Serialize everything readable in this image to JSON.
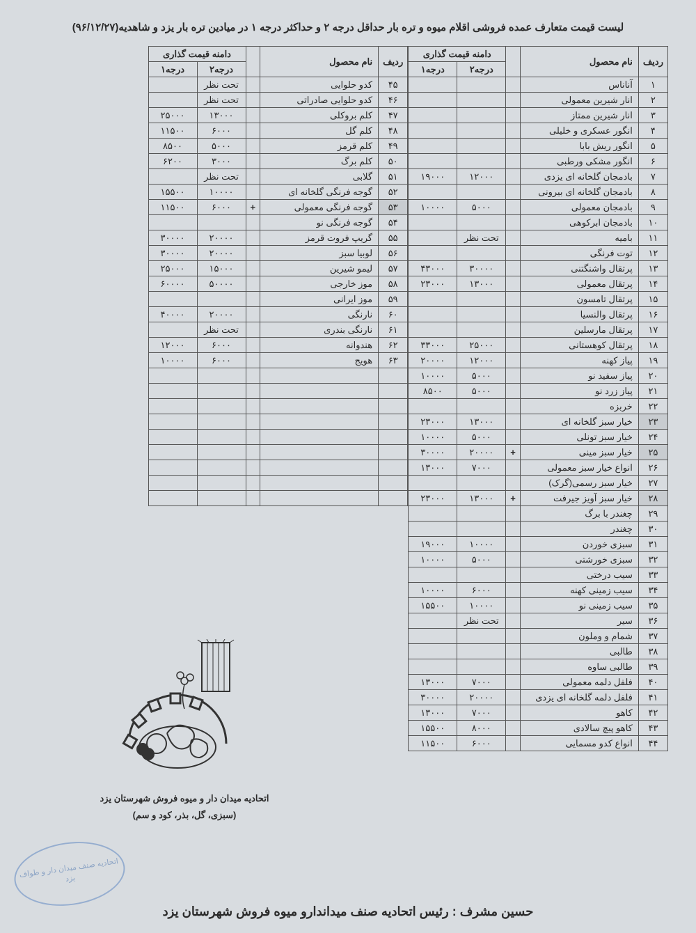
{
  "title": "لیست قیمت متعارف عمده فروشی اقلام میوه و تره بار حداقل درجه ۲ و حداکثر درجه ۱ در میادین تره بار یزد و شاهدیه(۹۶/۱۲/۲۷)",
  "headers": {
    "idx": "ردیف",
    "name": "نام محصول",
    "price_range": "دامنه قیمت گذاری",
    "grade2": "درجه۲",
    "grade1": "درجه۱"
  },
  "right_rows": [
    {
      "idx": "۱",
      "name": "آناناس",
      "mark": "",
      "g2": "",
      "g1": ""
    },
    {
      "idx": "۲",
      "name": "انار شیرین معمولی",
      "mark": "",
      "g2": "",
      "g1": ""
    },
    {
      "idx": "۳",
      "name": "انار شیرین ممتاز",
      "mark": "",
      "g2": "",
      "g1": ""
    },
    {
      "idx": "۴",
      "name": "انگور عسکری و خلیلی",
      "mark": "",
      "g2": "",
      "g1": ""
    },
    {
      "idx": "۵",
      "name": "انگور ریش بابا",
      "mark": "",
      "g2": "",
      "g1": ""
    },
    {
      "idx": "۶",
      "name": "انگور مشکی ورطبی",
      "mark": "",
      "g2": "",
      "g1": ""
    },
    {
      "idx": "۷",
      "name": "بادمجان گلخانه ای یزدی",
      "mark": "",
      "g2": "۱۲۰۰۰",
      "g1": "۱۹۰۰۰"
    },
    {
      "idx": "۸",
      "name": "بادمجان گلخانه ای بیرونی",
      "mark": "",
      "g2": "",
      "g1": ""
    },
    {
      "idx": "۹",
      "name": "بادمجان معمولی",
      "mark": "",
      "g2": "۵۰۰۰",
      "g1": "۱۰۰۰۰"
    },
    {
      "idx": "۱۰",
      "name": "بادمجان ابرکوهی",
      "mark": "",
      "g2": "",
      "g1": ""
    },
    {
      "idx": "۱۱",
      "name": "بامیه",
      "mark": "",
      "g2": "تحت نظر",
      "g1": ""
    },
    {
      "idx": "۱۲",
      "name": "توت فرنگی",
      "mark": "",
      "g2": "",
      "g1": ""
    },
    {
      "idx": "۱۳",
      "name": "پرتقال واشنگتنی",
      "mark": "",
      "g2": "۳۰۰۰۰",
      "g1": "۴۳۰۰۰"
    },
    {
      "idx": "۱۴",
      "name": "پرتقال معمولی",
      "mark": "",
      "g2": "۱۳۰۰۰",
      "g1": "۲۳۰۰۰"
    },
    {
      "idx": "۱۵",
      "name": "پرتقال تامسون",
      "mark": "",
      "g2": "",
      "g1": ""
    },
    {
      "idx": "۱۶",
      "name": "پرتقال والنسیا",
      "mark": "",
      "g2": "",
      "g1": ""
    },
    {
      "idx": "۱۷",
      "name": "پرتقال مارسلین",
      "mark": "",
      "g2": "",
      "g1": ""
    },
    {
      "idx": "۱۸",
      "name": "پرتقال کوهستانی",
      "mark": "",
      "g2": "۲۵۰۰۰",
      "g1": "۳۳۰۰۰"
    },
    {
      "idx": "۱۹",
      "name": "پیاز کهنه",
      "mark": "",
      "g2": "۱۲۰۰۰",
      "g1": "۲۰۰۰۰"
    },
    {
      "idx": "۲۰",
      "name": "پیاز سفید نو",
      "mark": "",
      "g2": "۵۰۰۰",
      "g1": "۱۰۰۰۰"
    },
    {
      "idx": "۲۱",
      "name": "پیاز زرد نو",
      "mark": "",
      "g2": "۵۰۰۰",
      "g1": "۸۵۰۰"
    },
    {
      "idx": "۲۲",
      "name": "خربزه",
      "mark": "",
      "g2": "",
      "g1": ""
    },
    {
      "idx": "۲۳",
      "name": "خیار سبز گلخانه ای",
      "mark": "",
      "g2": "۱۳۰۰۰",
      "g1": "۲۳۰۰۰",
      "shade": true
    },
    {
      "idx": "۲۴",
      "name": "خیار سبز تونلی",
      "mark": "",
      "g2": "۵۰۰۰",
      "g1": "۱۰۰۰۰"
    },
    {
      "idx": "۲۵",
      "name": "خیار سبز مینی",
      "mark": "+",
      "g2": "۲۰۰۰۰",
      "g1": "۳۰۰۰۰",
      "shade": true
    },
    {
      "idx": "۲۶",
      "name": "انواع خیار سبز معمولی",
      "mark": "",
      "g2": "۷۰۰۰",
      "g1": "۱۳۰۰۰"
    },
    {
      "idx": "۲۷",
      "name": "خیار سبز رسمی(گرک)",
      "mark": "",
      "g2": "",
      "g1": ""
    },
    {
      "idx": "۲۸",
      "name": "خیار سبز آویز جیرفت",
      "mark": "+",
      "g2": "۱۳۰۰۰",
      "g1": "۲۳۰۰۰",
      "shade": true
    },
    {
      "idx": "۲۹",
      "name": "چغندر با برگ",
      "mark": "",
      "g2": "",
      "g1": ""
    },
    {
      "idx": "۳۰",
      "name": "چغندر",
      "mark": "",
      "g2": "",
      "g1": ""
    },
    {
      "idx": "۳۱",
      "name": "سبزی خوردن",
      "mark": "",
      "g2": "۱۰۰۰۰",
      "g1": "۱۹۰۰۰"
    },
    {
      "idx": "۳۲",
      "name": "سبزی خورشتی",
      "mark": "",
      "g2": "۵۰۰۰",
      "g1": "۱۰۰۰۰"
    },
    {
      "idx": "۳۳",
      "name": "سیب درختی",
      "mark": "",
      "g2": "",
      "g1": ""
    },
    {
      "idx": "۳۴",
      "name": "سیب زمینی کهنه",
      "mark": "",
      "g2": "۶۰۰۰",
      "g1": "۱۰۰۰۰"
    },
    {
      "idx": "۳۵",
      "name": "سیب زمینی نو",
      "mark": "",
      "g2": "۱۰۰۰۰",
      "g1": "۱۵۵۰۰"
    },
    {
      "idx": "۳۶",
      "name": "سیر",
      "mark": "",
      "g2": "تحت نظر",
      "g1": ""
    },
    {
      "idx": "۳۷",
      "name": "شمام و وملون",
      "mark": "",
      "g2": "",
      "g1": ""
    },
    {
      "idx": "۳۸",
      "name": "طالبی",
      "mark": "",
      "g2": "",
      "g1": ""
    },
    {
      "idx": "۳۹",
      "name": "طالبی ساوه",
      "mark": "",
      "g2": "",
      "g1": ""
    },
    {
      "idx": "۴۰",
      "name": "فلفل دلمه معمولی",
      "mark": "",
      "g2": "۷۰۰۰",
      "g1": "۱۳۰۰۰"
    },
    {
      "idx": "۴۱",
      "name": "فلفل دلمه گلخانه ای یزدی",
      "mark": "",
      "g2": "۲۰۰۰۰",
      "g1": "۳۰۰۰۰"
    },
    {
      "idx": "۴۲",
      "name": "کاهو",
      "mark": "",
      "g2": "۷۰۰۰",
      "g1": "۱۳۰۰۰"
    },
    {
      "idx": "۴۳",
      "name": "کاهو پیچ سالادی",
      "mark": "",
      "g2": "۸۰۰۰",
      "g1": "۱۵۵۰۰"
    },
    {
      "idx": "۴۴",
      "name": "انواع کدو مسمایی",
      "mark": "",
      "g2": "۶۰۰۰",
      "g1": "۱۱۵۰۰"
    }
  ],
  "left_rows": [
    {
      "idx": "۴۵",
      "name": "کدو حلوایی",
      "mark": "",
      "g2": "تحت نظر",
      "g1": ""
    },
    {
      "idx": "۴۶",
      "name": "کدو حلوایی صادراتی",
      "mark": "",
      "g2": "تحت نظر",
      "g1": ""
    },
    {
      "idx": "۴۷",
      "name": "کلم بروکلی",
      "mark": "",
      "g2": "۱۳۰۰۰",
      "g1": "۲۵۰۰۰"
    },
    {
      "idx": "۴۸",
      "name": "کلم گل",
      "mark": "",
      "g2": "۶۰۰۰",
      "g1": "۱۱۵۰۰"
    },
    {
      "idx": "۴۹",
      "name": "کلم قرمز",
      "mark": "",
      "g2": "۵۰۰۰",
      "g1": "۸۵۰۰"
    },
    {
      "idx": "۵۰",
      "name": "کلم برگ",
      "mark": "",
      "g2": "۳۰۰۰",
      "g1": "۶۲۰۰"
    },
    {
      "idx": "۵۱",
      "name": "گلابی",
      "mark": "",
      "g2": "تحت نظر",
      "g1": ""
    },
    {
      "idx": "۵۲",
      "name": "گوجه فرنگی گلخانه ای",
      "mark": "",
      "g2": "۱۰۰۰۰",
      "g1": "۱۵۵۰۰"
    },
    {
      "idx": "۵۳",
      "name": "گوجه فرنگی معمولی",
      "mark": "+",
      "g2": "۶۰۰۰",
      "g1": "۱۱۵۰۰",
      "shade": true
    },
    {
      "idx": "۵۴",
      "name": "گوجه فرنگی نو",
      "mark": "",
      "g2": "",
      "g1": ""
    },
    {
      "idx": "۵۵",
      "name": "گریپ فروت قرمز",
      "mark": "",
      "g2": "۲۰۰۰۰",
      "g1": "۳۰۰۰۰"
    },
    {
      "idx": "۵۶",
      "name": "لوبیا سبز",
      "mark": "",
      "g2": "۲۰۰۰۰",
      "g1": "۳۰۰۰۰"
    },
    {
      "idx": "۵۷",
      "name": "لیمو شیرین",
      "mark": "",
      "g2": "۱۵۰۰۰",
      "g1": "۲۵۰۰۰"
    },
    {
      "idx": "۵۸",
      "name": "موز خارجی",
      "mark": "",
      "g2": "۵۰۰۰۰",
      "g1": "۶۰۰۰۰"
    },
    {
      "idx": "۵۹",
      "name": "موز ایرانی",
      "mark": "",
      "g2": "",
      "g1": ""
    },
    {
      "idx": "۶۰",
      "name": "نارنگی",
      "mark": "",
      "g2": "۲۰۰۰۰",
      "g1": "۴۰۰۰۰"
    },
    {
      "idx": "۶۱",
      "name": "نارنگی بندری",
      "mark": "",
      "g2": "تحت نظر",
      "g1": ""
    },
    {
      "idx": "۶۲",
      "name": "هندوانه",
      "mark": "",
      "g2": "۶۰۰۰",
      "g1": "۱۲۰۰۰"
    },
    {
      "idx": "۶۳",
      "name": "هویج",
      "mark": "",
      "g2": "۶۰۰۰",
      "g1": "۱۰۰۰۰"
    },
    {
      "idx": "",
      "name": "",
      "mark": "",
      "g2": "",
      "g1": ""
    },
    {
      "idx": "",
      "name": "",
      "mark": "",
      "g2": "",
      "g1": ""
    },
    {
      "idx": "",
      "name": "",
      "mark": "",
      "g2": "",
      "g1": ""
    },
    {
      "idx": "",
      "name": "",
      "mark": "",
      "g2": "",
      "g1": ""
    },
    {
      "idx": "",
      "name": "",
      "mark": "",
      "g2": "",
      "g1": ""
    },
    {
      "idx": "",
      "name": "",
      "mark": "",
      "g2": "",
      "g1": ""
    },
    {
      "idx": "",
      "name": "",
      "mark": "",
      "g2": "",
      "g1": ""
    },
    {
      "idx": "",
      "name": "",
      "mark": "",
      "g2": "",
      "g1": ""
    },
    {
      "idx": "",
      "name": "",
      "mark": "",
      "g2": "",
      "g1": ""
    }
  ],
  "logo_caption_line1": "اتحادیه میدان دار و میوه فروش شهرستان یزد",
  "logo_caption_line2": "(سبزی، گل، بذر، کود و سم)",
  "stamp_text": "اتحادیه صنف\nمیدان دار و طواف یزد",
  "footer": "حسین مشرف : رئیس اتحادیه صنف میداندارو میوه فروش شهرستان یزد"
}
